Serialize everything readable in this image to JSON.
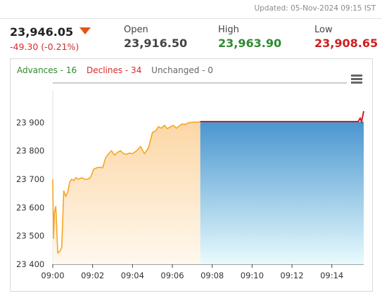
{
  "header": {
    "updated": "Updated: 05-Nov-2024 09:15 IST",
    "price": "23,946.05",
    "change": "-49.30 (-0.21%)",
    "open_label": "Open",
    "open": "23,916.50",
    "high_label": "High",
    "high": "23,963.90",
    "low_label": "Low",
    "low": "23,908.65"
  },
  "colors": {
    "high": "#2f8a2f",
    "low": "#cc1f1f",
    "line": "#f5a623",
    "band": "#cc1f1f"
  },
  "legend": {
    "advances": "Advances - 16",
    "declines": "Declines - 34",
    "unchanged": "Unchanged - 0"
  },
  "chart_data": {
    "type": "line",
    "xlabel": "",
    "ylabel": "",
    "xlim": [
      0,
      15.6
    ],
    "ylim": [
      23400,
      23975
    ],
    "x_ticks": [
      "09:00",
      "09:02",
      "09:04",
      "09:06",
      "09:08",
      "09:10",
      "09:12",
      "09:14"
    ],
    "y_ticks": [
      23400,
      23500,
      23600,
      23700,
      23800,
      23900
    ],
    "grid": false,
    "series": [
      {
        "x": [
          0,
          0.04,
          0.08,
          0.15,
          0.25,
          0.35,
          0.45,
          0.55,
          0.65,
          0.75,
          0.85,
          0.95,
          1.05,
          1.15,
          1.3,
          1.45,
          1.6,
          1.75,
          1.9,
          2.05,
          2.2,
          2.35,
          2.5,
          2.65,
          2.8,
          2.95,
          3.1,
          3.25,
          3.4,
          3.55,
          3.7,
          3.85,
          4.0,
          4.2,
          4.4,
          4.6,
          4.8,
          5.0,
          5.15,
          5.3,
          5.45,
          5.6,
          5.75,
          5.9,
          6.05,
          6.2,
          6.35,
          6.5,
          6.65,
          6.8,
          6.95,
          7.1,
          7.25,
          7.4
        ],
        "values": [
          23700,
          23490,
          23580,
          23605,
          23440,
          23445,
          23460,
          23660,
          23640,
          23655,
          23690,
          23700,
          23695,
          23705,
          23700,
          23705,
          23700,
          23700,
          23706,
          23735,
          23740,
          23742,
          23740,
          23775,
          23790,
          23800,
          23785,
          23795,
          23800,
          23790,
          23788,
          23792,
          23790,
          23800,
          23815,
          23790,
          23810,
          23865,
          23870,
          23885,
          23880,
          23890,
          23878,
          23885,
          23890,
          23880,
          23888,
          23895,
          23893,
          23899,
          23900,
          23902,
          23901,
          23903
        ]
      }
    ],
    "band": {
      "x_from": 7.4,
      "x_to": 15.6,
      "value": 23903,
      "end_values": [
        23903,
        23915,
        23903,
        23940
      ]
    }
  }
}
